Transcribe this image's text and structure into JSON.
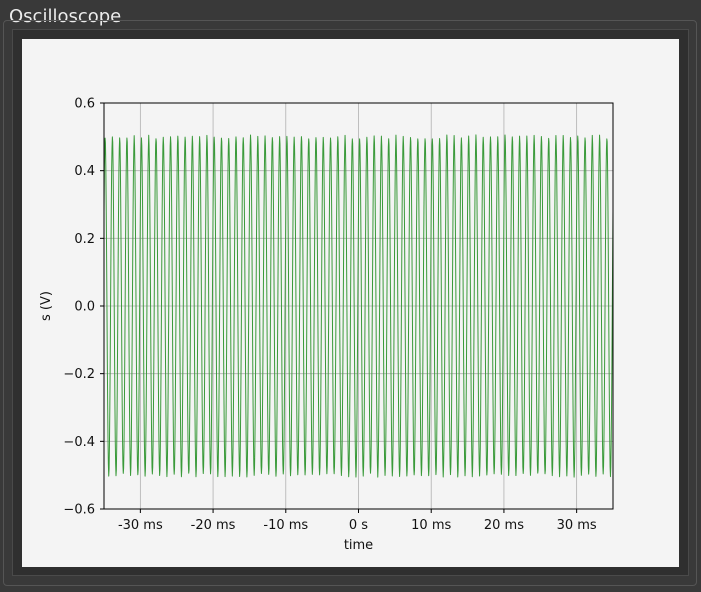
{
  "window": {
    "title": "Oscilloscope"
  },
  "chart_data": {
    "type": "line",
    "title": "",
    "xlabel": "time",
    "ylabel": "s (V)",
    "xlim": [
      -35,
      35
    ],
    "ylim": [
      -0.6,
      0.6
    ],
    "x_unit": "ms",
    "x_ticks": [
      -30,
      -20,
      -10,
      0,
      10,
      20,
      30
    ],
    "x_tick_labels": [
      "-30 ms",
      "-20 ms",
      "-10 ms",
      "0 s",
      "10 ms",
      "20 ms",
      "30 ms"
    ],
    "y_ticks": [
      -0.6,
      -0.4,
      -0.2,
      0.0,
      0.2,
      0.4,
      0.6
    ],
    "y_tick_labels": [
      "−0.6",
      "−0.4",
      "−0.2",
      "0.0",
      "0.2",
      "0.4",
      "0.6"
    ],
    "grid": true,
    "series": [
      {
        "color": "#3a9a3a",
        "waveform": "sine",
        "amplitude": 0.5,
        "frequency_hz": 1000,
        "noise": 0.006
      }
    ]
  }
}
